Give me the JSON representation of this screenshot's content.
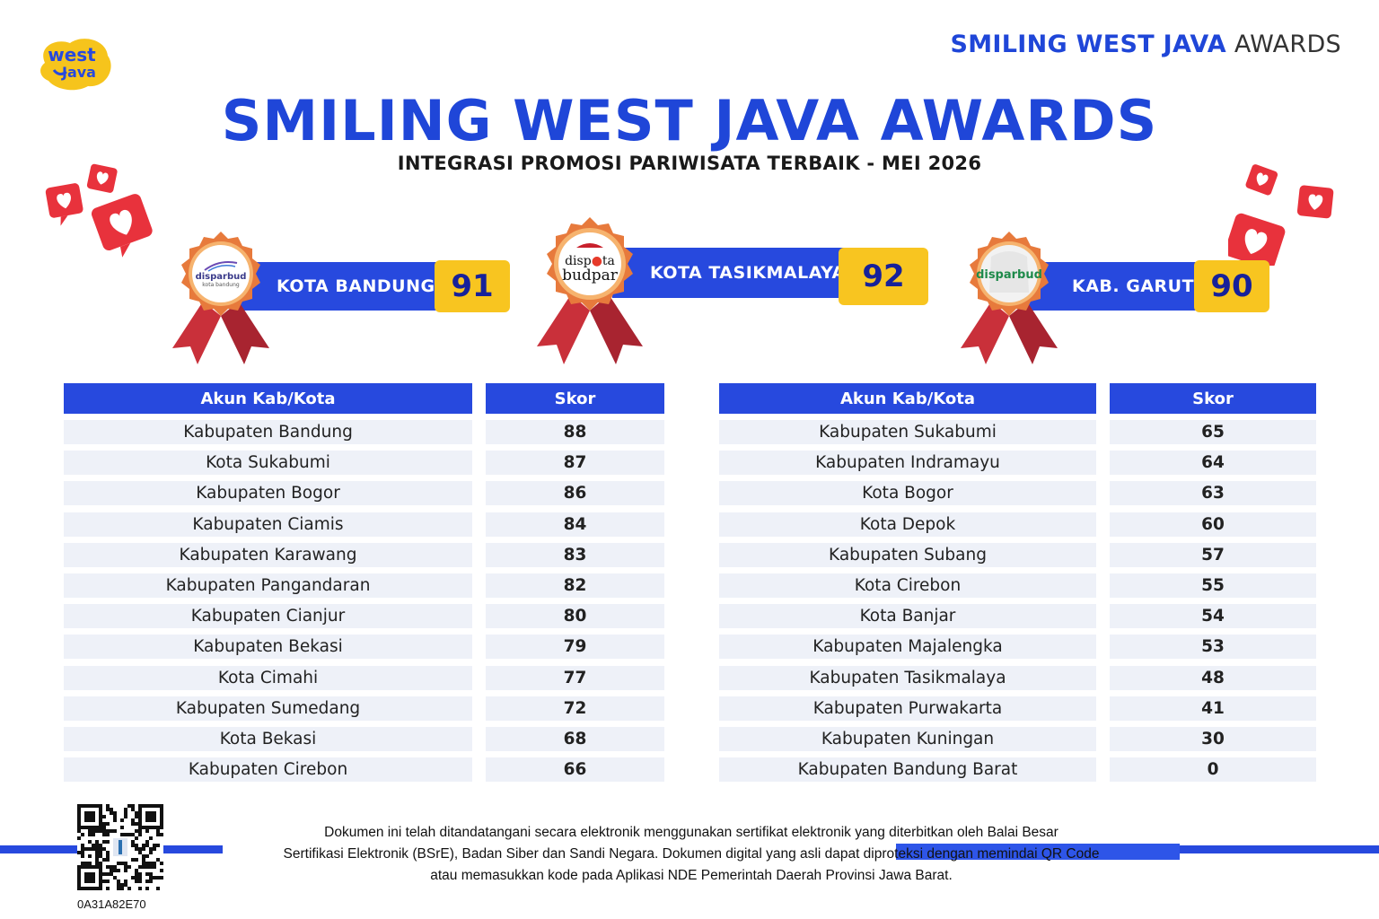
{
  "logo": {
    "line1": "west",
    "line2": "Java"
  },
  "brand": {
    "bold": "SMILING WEST JAVA",
    "light": "AWARDS"
  },
  "title": "SMILING WEST JAVA AWARDS",
  "subtitle": "INTEGRASI PROMOSI PARIWISATA TERBAIK - MEI 2026",
  "winners": [
    {
      "name": "KOTA BANDUNG",
      "score": "91",
      "logo_text": "disparbud",
      "logo_sub": "kota bandung"
    },
    {
      "name": "KOTA TASIKMALAYA",
      "score": "92",
      "logo_text": "disp",
      "logo_text2": "ta",
      "logo_text3": "budpar"
    },
    {
      "name": "KAB. GARUT",
      "score": "90",
      "logo_text": "disparbud"
    }
  ],
  "table_left": {
    "col1": "Akun Kab/Kota",
    "col2": "Skor",
    "rows": [
      {
        "name": "Kabupaten Bandung",
        "score": "88"
      },
      {
        "name": "Kota Sukabumi",
        "score": "87"
      },
      {
        "name": "Kabupaten Bogor",
        "score": "86"
      },
      {
        "name": "Kabupaten Ciamis",
        "score": "84"
      },
      {
        "name": "Kabupaten Karawang",
        "score": "83"
      },
      {
        "name": "Kabupaten Pangandaran",
        "score": "82"
      },
      {
        "name": "Kabupaten Cianjur",
        "score": "80"
      },
      {
        "name": "Kabupaten Bekasi",
        "score": "79"
      },
      {
        "name": "Kota Cimahi",
        "score": "77"
      },
      {
        "name": "Kabupaten Sumedang",
        "score": "72"
      },
      {
        "name": "Kota Bekasi",
        "score": "68"
      },
      {
        "name": "Kabupaten Cirebon",
        "score": "66"
      }
    ]
  },
  "table_right": {
    "col1": "Akun Kab/Kota",
    "col2": "Skor",
    "rows": [
      {
        "name": "Kabupaten Sukabumi",
        "score": "65"
      },
      {
        "name": "Kabupaten Indramayu",
        "score": "64"
      },
      {
        "name": "Kota Bogor",
        "score": "63"
      },
      {
        "name": "Kota Depok",
        "score": "60"
      },
      {
        "name": "Kabupaten Subang",
        "score": "57"
      },
      {
        "name": "Kota Cirebon",
        "score": "55"
      },
      {
        "name": "Kota Banjar",
        "score": "54"
      },
      {
        "name": "Kabupaten Majalengka",
        "score": "53"
      },
      {
        "name": "Kabupaten Tasikmalaya",
        "score": "48"
      },
      {
        "name": "Kabupaten Purwakarta",
        "score": "41"
      },
      {
        "name": "Kabupaten Kuningan",
        "score": "30"
      },
      {
        "name": "Kabupaten Bandung Barat",
        "score": "0"
      }
    ]
  },
  "footer": {
    "line1": "Dokumen ini telah ditandatangani secara elektronik menggunakan sertifikat elektronik yang diterbitkan oleh Balai Besar",
    "line2": "Sertifikasi Elektronik (BSrE), Badan Siber dan Sandi Negara. Dokumen digital yang asli dapat diproteksi dengan memindai QR Code",
    "line3": "atau memasukkan kode pada Aplikasi NDE Pemerintah Daerah Provinsi Jawa Barat.",
    "doc_code": "0A31A82E70"
  },
  "colors": {
    "primary_blue": "#2749de",
    "score_yellow": "#f8c520",
    "ribbon_red": "#d8323c",
    "medal_orange": "#e77a3c",
    "row_bg": "#eef1f8"
  },
  "icons": [
    "west-java-logo-icon",
    "heart-notification-icon",
    "medal-ribbon-icon",
    "qr-code-icon"
  ]
}
